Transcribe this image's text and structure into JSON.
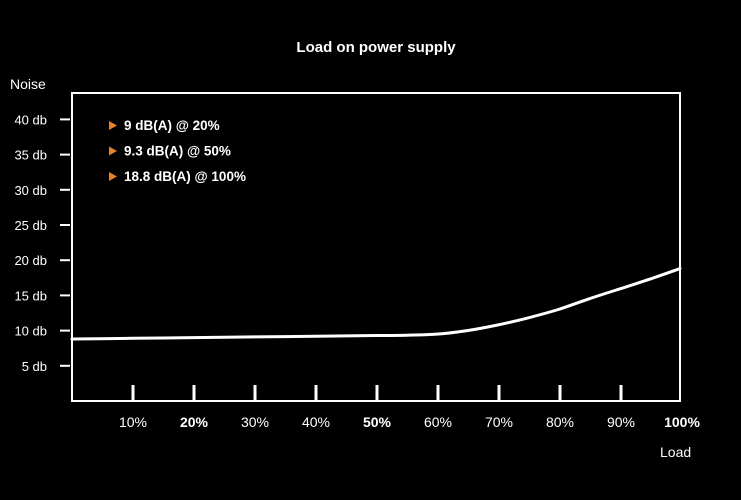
{
  "chart_data": {
    "type": "line",
    "title": "Load on power supply",
    "ylabel": "Noise",
    "xlabel": "Load",
    "x_categories": [
      "10%",
      "20%",
      "30%",
      "40%",
      "50%",
      "60%",
      "70%",
      "80%",
      "90%",
      "100%"
    ],
    "x_bold": [
      "20%",
      "50%",
      "100%"
    ],
    "y_ticks": [
      "5 db",
      "10 db",
      "15 db",
      "20 db",
      "25 db",
      "30 db",
      "35 db",
      "40 db"
    ],
    "ylim": [
      0,
      44.5
    ],
    "xlim": [
      0,
      100
    ],
    "series": [
      {
        "x": [
          0,
          10,
          20,
          30,
          40,
          50,
          55,
          60,
          65,
          70,
          75,
          80,
          85,
          90,
          95,
          100
        ],
        "y": [
          8.8,
          8.9,
          9.0,
          9.1,
          9.2,
          9.3,
          9.35,
          9.5,
          10.0,
          10.8,
          11.8,
          13.0,
          14.5,
          15.9,
          17.3,
          18.8
        ]
      }
    ],
    "annotations": [
      "9 dB(A) @ 20%",
      "9.3 dB(A) @ 50%",
      "18.8 dB(A) @ 100%"
    ],
    "marker_color": "#e8822a",
    "line_color": "#ffffff",
    "background": "#000000",
    "grid": false
  }
}
